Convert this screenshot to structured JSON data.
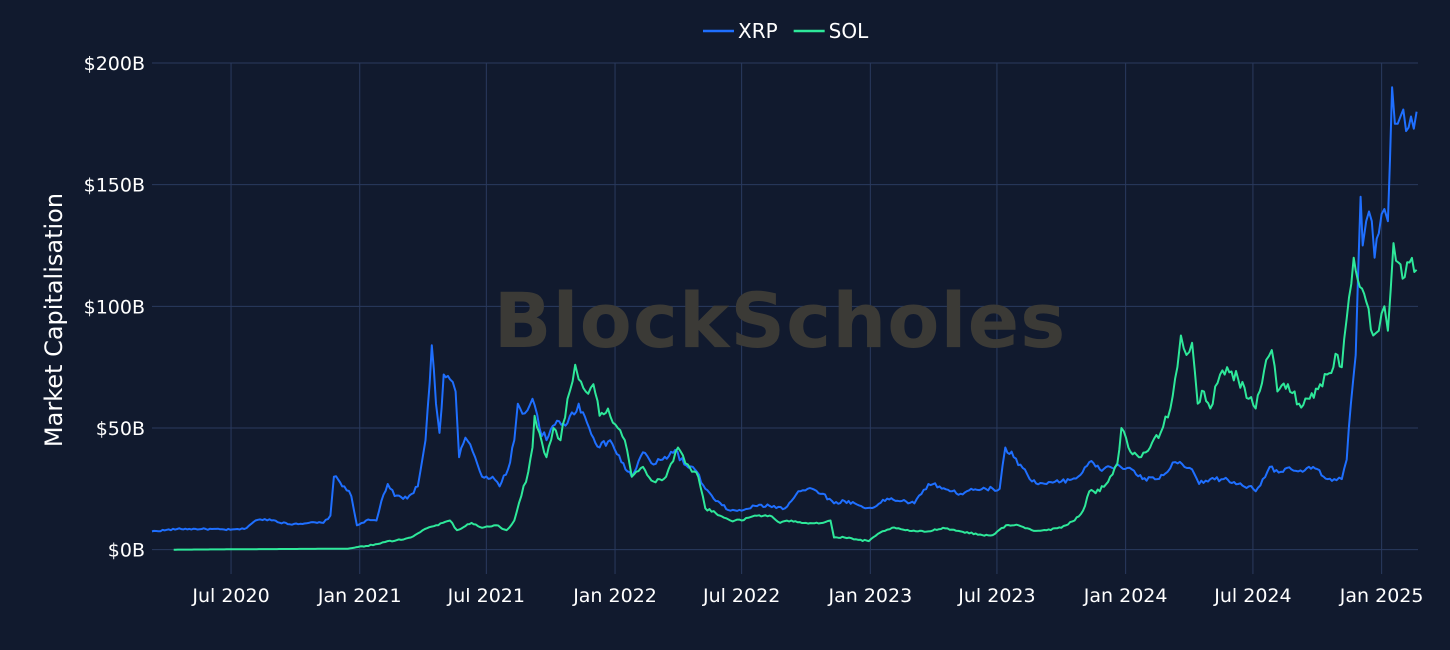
{
  "watermark": "BlockScholes",
  "colors": {
    "background": "#111a2e",
    "grid": "#2a3a5e",
    "watermark": "#3b3a36"
  },
  "chart_data": {
    "type": "line",
    "title": "",
    "xlabel": "",
    "ylabel": "Market Capitalisation",
    "grid": true,
    "legend_position": "top-center",
    "x_range": [
      "2020-03-10",
      "2025-02-22"
    ],
    "ylim": [
      -10,
      200
    ],
    "y_ticks": [
      0,
      50,
      100,
      150,
      200
    ],
    "y_tick_labels": [
      "$0B",
      "$50B",
      "$100B",
      "$150B",
      "$200B"
    ],
    "x_ticks": [
      "2020-07-01",
      "2021-01-01",
      "2021-07-01",
      "2022-01-01",
      "2022-07-01",
      "2023-01-01",
      "2023-07-01",
      "2024-01-01",
      "2024-07-01",
      "2025-01-01"
    ],
    "x_tick_labels": [
      "Jul 2020",
      "Jan 2021",
      "Jul 2021",
      "Jan 2022",
      "Jul 2022",
      "Jan 2023",
      "Jul 2023",
      "Jan 2024",
      "Jul 2024",
      "Jan 2025"
    ],
    "series": [
      {
        "name": "XRP",
        "color": "#1f6fff",
        "points": [
          [
            "2020-03-10",
            7.5
          ],
          [
            "2020-04-15",
            8.5
          ],
          [
            "2020-05-20",
            8.5
          ],
          [
            "2020-06-30",
            8.2
          ],
          [
            "2020-07-20",
            8.5
          ],
          [
            "2020-08-05",
            12
          ],
          [
            "2020-08-25",
            12.5
          ],
          [
            "2020-09-20",
            10.5
          ],
          [
            "2020-10-20",
            11
          ],
          [
            "2020-11-10",
            11
          ],
          [
            "2020-11-20",
            14
          ],
          [
            "2020-11-25",
            30
          ],
          [
            "2020-12-10",
            26
          ],
          [
            "2020-12-20",
            22
          ],
          [
            "2020-12-28",
            10
          ],
          [
            "2021-01-10",
            12
          ],
          [
            "2021-01-25",
            12
          ],
          [
            "2021-02-01",
            20
          ],
          [
            "2021-02-10",
            27
          ],
          [
            "2021-02-20",
            22
          ],
          [
            "2021-03-10",
            21
          ],
          [
            "2021-03-25",
            26
          ],
          [
            "2021-04-05",
            45
          ],
          [
            "2021-04-14",
            84
          ],
          [
            "2021-04-20",
            60
          ],
          [
            "2021-04-25",
            48
          ],
          [
            "2021-05-01",
            72
          ],
          [
            "2021-05-10",
            70
          ],
          [
            "2021-05-18",
            65
          ],
          [
            "2021-05-23",
            38
          ],
          [
            "2021-06-01",
            46
          ],
          [
            "2021-06-15",
            38
          ],
          [
            "2021-06-25",
            30
          ],
          [
            "2021-07-10",
            30
          ],
          [
            "2021-07-20",
            26
          ],
          [
            "2021-08-01",
            33
          ],
          [
            "2021-08-10",
            45
          ],
          [
            "2021-08-15",
            60
          ],
          [
            "2021-08-25",
            56
          ],
          [
            "2021-09-05",
            62
          ],
          [
            "2021-09-15",
            50
          ],
          [
            "2021-09-25",
            45
          ],
          [
            "2021-10-10",
            53
          ],
          [
            "2021-10-25",
            52
          ],
          [
            "2021-11-10",
            60
          ],
          [
            "2021-11-25",
            50
          ],
          [
            "2021-12-10",
            42
          ],
          [
            "2021-12-25",
            45
          ],
          [
            "2022-01-10",
            36
          ],
          [
            "2022-01-25",
            30
          ],
          [
            "2022-02-10",
            40
          ],
          [
            "2022-02-25",
            35
          ],
          [
            "2022-03-10",
            37
          ],
          [
            "2022-03-28",
            41
          ],
          [
            "2022-04-10",
            35
          ],
          [
            "2022-04-25",
            33
          ],
          [
            "2022-05-10",
            25
          ],
          [
            "2022-05-25",
            20
          ],
          [
            "2022-06-15",
            16
          ],
          [
            "2022-07-01",
            16
          ],
          [
            "2022-07-20",
            18
          ],
          [
            "2022-08-10",
            18
          ],
          [
            "2022-09-01",
            17
          ],
          [
            "2022-09-20",
            24
          ],
          [
            "2022-10-10",
            25
          ],
          [
            "2022-10-25",
            23
          ],
          [
            "2022-11-10",
            19
          ],
          [
            "2022-11-25",
            20
          ],
          [
            "2022-12-10",
            19
          ],
          [
            "2022-12-25",
            17
          ],
          [
            "2023-01-10",
            18
          ],
          [
            "2023-01-25",
            21
          ],
          [
            "2023-02-15",
            20
          ],
          [
            "2023-03-05",
            19
          ],
          [
            "2023-03-25",
            27
          ],
          [
            "2023-04-10",
            26
          ],
          [
            "2023-04-25",
            24
          ],
          [
            "2023-05-10",
            23
          ],
          [
            "2023-05-25",
            25
          ],
          [
            "2023-06-15",
            25
          ],
          [
            "2023-07-05",
            25
          ],
          [
            "2023-07-13",
            42
          ],
          [
            "2023-07-25",
            38
          ],
          [
            "2023-08-10",
            33
          ],
          [
            "2023-08-20",
            28
          ],
          [
            "2023-09-10",
            27
          ],
          [
            "2023-10-01",
            28
          ],
          [
            "2023-10-25",
            30
          ],
          [
            "2023-11-10",
            36
          ],
          [
            "2023-11-25",
            33
          ],
          [
            "2023-12-10",
            34
          ],
          [
            "2023-12-25",
            34
          ],
          [
            "2024-01-10",
            33
          ],
          [
            "2024-01-25",
            29
          ],
          [
            "2024-02-15",
            29
          ],
          [
            "2024-03-01",
            32
          ],
          [
            "2024-03-12",
            36
          ],
          [
            "2024-03-25",
            34
          ],
          [
            "2024-04-05",
            33
          ],
          [
            "2024-04-15",
            27
          ],
          [
            "2024-05-01",
            29
          ],
          [
            "2024-05-20",
            29
          ],
          [
            "2024-06-10",
            27
          ],
          [
            "2024-06-25",
            26
          ],
          [
            "2024-07-05",
            24
          ],
          [
            "2024-07-15",
            29
          ],
          [
            "2024-07-25",
            34
          ],
          [
            "2024-08-10",
            32
          ],
          [
            "2024-08-25",
            33
          ],
          [
            "2024-09-10",
            32
          ],
          [
            "2024-09-25",
            34
          ],
          [
            "2024-10-10",
            30
          ],
          [
            "2024-10-25",
            29
          ],
          [
            "2024-11-05",
            29
          ],
          [
            "2024-11-12",
            37
          ],
          [
            "2024-11-18",
            60
          ],
          [
            "2024-11-25",
            80
          ],
          [
            "2024-12-02",
            145
          ],
          [
            "2024-12-05",
            125
          ],
          [
            "2024-12-10",
            135
          ],
          [
            "2024-12-18",
            135
          ],
          [
            "2024-12-22",
            120
          ],
          [
            "2024-12-28",
            130
          ],
          [
            "2025-01-05",
            140
          ],
          [
            "2025-01-10",
            135
          ],
          [
            "2025-01-16",
            190
          ],
          [
            "2025-01-20",
            175
          ],
          [
            "2025-01-28",
            178
          ],
          [
            "2025-02-05",
            172
          ],
          [
            "2025-02-12",
            178
          ],
          [
            "2025-02-20",
            180
          ]
        ]
      },
      {
        "name": "SOL",
        "color": "#2ee89a",
        "points": [
          [
            "2020-04-10",
            0
          ],
          [
            "2020-08-01",
            0.2
          ],
          [
            "2020-12-15",
            0.4
          ],
          [
            "2021-01-10",
            1.5
          ],
          [
            "2021-01-30",
            2.5
          ],
          [
            "2021-02-10",
            3.5
          ],
          [
            "2021-03-01",
            4
          ],
          [
            "2021-03-15",
            5
          ],
          [
            "2021-04-01",
            8
          ],
          [
            "2021-04-20",
            10
          ],
          [
            "2021-05-10",
            12
          ],
          [
            "2021-05-20",
            8
          ],
          [
            "2021-06-10",
            11
          ],
          [
            "2021-06-25",
            9
          ],
          [
            "2021-07-15",
            10
          ],
          [
            "2021-07-30",
            8
          ],
          [
            "2021-08-10",
            12
          ],
          [
            "2021-08-20",
            22
          ],
          [
            "2021-08-30",
            32
          ],
          [
            "2021-09-05",
            42
          ],
          [
            "2021-09-08",
            55
          ],
          [
            "2021-09-15",
            48
          ],
          [
            "2021-09-25",
            38
          ],
          [
            "2021-10-05",
            50
          ],
          [
            "2021-10-15",
            45
          ],
          [
            "2021-10-25",
            62
          ],
          [
            "2021-11-05",
            76
          ],
          [
            "2021-11-10",
            70
          ],
          [
            "2021-11-20",
            65
          ],
          [
            "2021-12-01",
            68
          ],
          [
            "2021-12-10",
            55
          ],
          [
            "2021-12-22",
            58
          ],
          [
            "2022-01-05",
            50
          ],
          [
            "2022-01-15",
            45
          ],
          [
            "2022-01-25",
            30
          ],
          [
            "2022-02-10",
            34
          ],
          [
            "2022-02-25",
            28
          ],
          [
            "2022-03-15",
            30
          ],
          [
            "2022-04-01",
            42
          ],
          [
            "2022-04-15",
            35
          ],
          [
            "2022-04-30",
            30
          ],
          [
            "2022-05-10",
            17
          ],
          [
            "2022-05-25",
            15
          ],
          [
            "2022-06-15",
            12
          ],
          [
            "2022-07-01",
            12
          ],
          [
            "2022-07-20",
            14
          ],
          [
            "2022-08-10",
            14
          ],
          [
            "2022-08-25",
            11
          ],
          [
            "2022-09-10",
            12
          ],
          [
            "2022-10-01",
            11
          ],
          [
            "2022-10-25",
            11
          ],
          [
            "2022-11-05",
            12
          ],
          [
            "2022-11-10",
            5
          ],
          [
            "2022-11-25",
            5
          ],
          [
            "2022-12-15",
            4
          ],
          [
            "2022-12-30",
            3.5
          ],
          [
            "2023-01-15",
            7
          ],
          [
            "2023-02-01",
            9
          ],
          [
            "2023-02-20",
            8
          ],
          [
            "2023-03-10",
            7.5
          ],
          [
            "2023-03-25",
            7.5
          ],
          [
            "2023-04-15",
            9
          ],
          [
            "2023-05-10",
            7.5
          ],
          [
            "2023-06-10",
            6
          ],
          [
            "2023-06-25",
            6
          ],
          [
            "2023-07-14",
            10
          ],
          [
            "2023-08-01",
            10
          ],
          [
            "2023-08-20",
            8
          ],
          [
            "2023-09-10",
            8
          ],
          [
            "2023-10-01",
            9
          ],
          [
            "2023-10-20",
            12
          ],
          [
            "2023-11-01",
            16
          ],
          [
            "2023-11-10",
            24
          ],
          [
            "2023-11-25",
            24
          ],
          [
            "2023-12-10",
            30
          ],
          [
            "2023-12-20",
            35
          ],
          [
            "2023-12-26",
            50
          ],
          [
            "2024-01-05",
            42
          ],
          [
            "2024-01-20",
            38
          ],
          [
            "2024-02-05",
            42
          ],
          [
            "2024-02-20",
            48
          ],
          [
            "2024-03-05",
            58
          ],
          [
            "2024-03-15",
            75
          ],
          [
            "2024-03-20",
            88
          ],
          [
            "2024-03-28",
            80
          ],
          [
            "2024-04-05",
            85
          ],
          [
            "2024-04-13",
            60
          ],
          [
            "2024-04-22",
            65
          ],
          [
            "2024-05-01",
            58
          ],
          [
            "2024-05-15",
            72
          ],
          [
            "2024-05-25",
            75
          ],
          [
            "2024-06-10",
            70
          ],
          [
            "2024-06-25",
            62
          ],
          [
            "2024-07-05",
            58
          ],
          [
            "2024-07-20",
            78
          ],
          [
            "2024-07-28",
            82
          ],
          [
            "2024-08-05",
            65
          ],
          [
            "2024-08-20",
            68
          ],
          [
            "2024-09-05",
            60
          ],
          [
            "2024-09-20",
            62
          ],
          [
            "2024-10-05",
            68
          ],
          [
            "2024-10-15",
            72
          ],
          [
            "2024-10-30",
            80
          ],
          [
            "2024-11-05",
            75
          ],
          [
            "2024-11-12",
            95
          ],
          [
            "2024-11-22",
            120
          ],
          [
            "2024-12-01",
            108
          ],
          [
            "2024-12-10",
            102
          ],
          [
            "2024-12-20",
            88
          ],
          [
            "2024-12-28",
            90
          ],
          [
            "2025-01-05",
            100
          ],
          [
            "2025-01-10",
            90
          ],
          [
            "2025-01-18",
            126
          ],
          [
            "2025-01-25",
            118
          ],
          [
            "2025-02-03",
            112
          ],
          [
            "2025-02-10",
            118
          ],
          [
            "2025-02-20",
            115
          ]
        ]
      }
    ]
  }
}
